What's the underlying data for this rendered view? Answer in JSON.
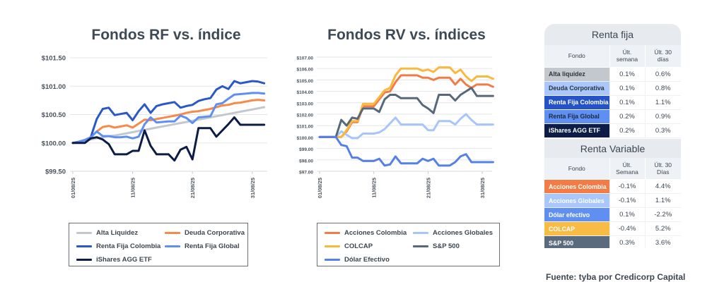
{
  "charts": [
    {
      "id": "rf",
      "type": "line",
      "title": "Fondos RF vs. índice",
      "xlabel": "",
      "ylabel": "",
      "ylim": [
        99.5,
        101.5
      ],
      "yticks": [
        99.5,
        100.0,
        100.5,
        101.0,
        101.5
      ],
      "ytick_labels": [
        "$99.50",
        "$100.00",
        "$100.50",
        "$101.00",
        "$101.50"
      ],
      "xtick_labels": [
        "01/08/25",
        "11/08/25",
        "21/08/25",
        "31/08/25"
      ],
      "xtick_index": [
        0,
        10,
        20,
        30
      ],
      "grid": true,
      "legend_placement": "bottom",
      "series": [
        {
          "name": "Alta Liquidez",
          "color": "#c3c8cf",
          "values": [
            100.0,
            100.02,
            100.04,
            100.06,
            100.08,
            100.1,
            100.12,
            100.13,
            100.15,
            100.17,
            100.19,
            100.21,
            100.23,
            100.25,
            100.27,
            100.29,
            100.31,
            100.33,
            100.35,
            100.37,
            100.39,
            100.41,
            100.43,
            100.45,
            100.47,
            100.49,
            100.51,
            100.53,
            100.55,
            100.57,
            100.59,
            100.61,
            100.63
          ]
        },
        {
          "name": "Deuda Corporativa",
          "color": "#f58a4b",
          "values": [
            100.0,
            100.02,
            100.05,
            100.1,
            100.2,
            100.28,
            100.3,
            100.27,
            100.29,
            100.31,
            100.27,
            100.34,
            100.41,
            100.4,
            100.42,
            100.44,
            100.46,
            100.48,
            100.5,
            100.53,
            100.55,
            100.56,
            100.58,
            100.6,
            100.63,
            100.66,
            100.67,
            100.7,
            100.71,
            100.73,
            100.75,
            100.76,
            100.75
          ]
        },
        {
          "name": "Renta Fija Colombia",
          "color": "#2b58c9",
          "values": [
            100.0,
            100.02,
            100.05,
            100.1,
            100.42,
            100.6,
            100.62,
            100.49,
            100.51,
            100.53,
            100.4,
            100.56,
            100.68,
            100.53,
            100.65,
            100.68,
            100.7,
            100.72,
            100.62,
            100.65,
            100.67,
            100.74,
            100.77,
            100.79,
            100.94,
            101.0,
            100.95,
            101.09,
            101.05,
            101.07,
            101.09,
            101.08,
            101.05
          ]
        },
        {
          "name": "Renta Fija Global",
          "color": "#5f8ff0",
          "values": [
            100.0,
            100.02,
            100.05,
            100.1,
            100.2,
            100.12,
            100.12,
            100.1,
            100.1,
            100.11,
            100.08,
            100.11,
            100.33,
            100.45,
            100.36,
            100.37,
            100.38,
            100.38,
            100.48,
            100.44,
            100.35,
            100.45,
            100.46,
            100.47,
            100.68,
            100.7,
            100.78,
            100.85,
            100.86,
            100.87,
            100.88,
            100.88,
            100.87
          ]
        },
        {
          "name": "iShares AGG ETF",
          "color": "#0c1c47",
          "values": [
            100.0,
            100.0,
            100.0,
            100.08,
            100.1,
            100.06,
            99.98,
            99.8,
            99.8,
            99.8,
            99.86,
            99.86,
            100.22,
            99.95,
            99.8,
            99.8,
            99.8,
            99.69,
            99.88,
            99.93,
            99.71,
            100.26,
            100.26,
            100.26,
            100.11,
            100.22,
            100.33,
            100.45,
            100.32,
            100.32,
            100.32,
            100.32,
            100.32
          ]
        }
      ]
    },
    {
      "id": "rv",
      "type": "line",
      "title": "Fondos RV vs. índices",
      "xlabel": "",
      "ylabel": "",
      "ylim": [
        97,
        107
      ],
      "yticks": [
        97,
        98,
        99,
        100,
        101,
        102,
        103,
        104,
        105,
        106,
        107
      ],
      "ytick_labels": [
        "$97.00",
        "$98.00",
        "$99.00",
        "$100.00",
        "$101.00",
        "$102.00",
        "$103.00",
        "$104.00",
        "$105.00",
        "$106.00",
        "$107.00"
      ],
      "xtick_labels": [
        "01/08/25",
        "11/08/25",
        "21/08/25",
        "31/08/25"
      ],
      "xtick_index": [
        0,
        10,
        20,
        30
      ],
      "grid": true,
      "legend_placement": "bottom",
      "series": [
        {
          "name": "Acciones Colombia",
          "color": "#f37b45",
          "values": [
            100.0,
            100.0,
            100.0,
            100.0,
            100.0,
            100.5,
            101.3,
            101.3,
            102.7,
            102.7,
            102.7,
            103.3,
            103.9,
            104.0,
            104.8,
            105.4,
            105.4,
            105.4,
            105.4,
            105.2,
            105.2,
            105.0,
            105.2,
            105.2,
            105.2,
            104.6,
            105.1,
            104.6,
            104.3,
            104.6,
            104.6,
            104.6,
            104.4
          ]
        },
        {
          "name": "Acciones Globales",
          "color": "#a7c5fb",
          "values": [
            100.0,
            100.0,
            100.0,
            100.0,
            100.5,
            100.2,
            99.9,
            99.9,
            100.3,
            100.3,
            100.3,
            100.4,
            100.7,
            101.2,
            101.7,
            101.1,
            101.1,
            101.1,
            101.1,
            101.1,
            100.6,
            100.6,
            101.4,
            101.4,
            101.4,
            101.1,
            101.6,
            102.0,
            101.5,
            101.1,
            101.1,
            101.1,
            101.1
          ]
        },
        {
          "name": "COLCAP",
          "color": "#f8b93d",
          "values": [
            100.0,
            100.0,
            100.0,
            100.0,
            100.0,
            100.6,
            101.4,
            101.4,
            102.9,
            102.9,
            102.9,
            103.5,
            104.1,
            104.3,
            105.4,
            106.0,
            106.0,
            106.0,
            106.0,
            105.8,
            105.9,
            105.7,
            106.1,
            106.1,
            106.1,
            105.6,
            105.9,
            105.3,
            104.9,
            105.3,
            105.3,
            105.3,
            105.1
          ]
        },
        {
          "name": "S&P 500",
          "color": "#57687a",
          "values": [
            100.0,
            100.0,
            100.0,
            100.0,
            101.5,
            101.0,
            101.7,
            101.6,
            102.5,
            102.5,
            102.5,
            102.2,
            103.3,
            103.7,
            103.7,
            103.4,
            103.4,
            103.4,
            103.4,
            102.8,
            102.5,
            102.1,
            103.7,
            103.7,
            103.7,
            103.2,
            103.7,
            104.0,
            104.3,
            103.6,
            103.6,
            103.6,
            103.6
          ]
        },
        {
          "name": "Dólar Efectivo",
          "color": "#5580e8",
          "values": [
            100.0,
            100.0,
            100.0,
            100.0,
            99.3,
            99.2,
            98.2,
            98.2,
            97.9,
            97.9,
            97.9,
            98.1,
            97.5,
            97.6,
            98.3,
            97.7,
            97.7,
            97.7,
            97.7,
            98.1,
            97.9,
            98.1,
            97.5,
            97.5,
            97.5,
            97.8,
            98.3,
            98.5,
            97.8,
            97.8,
            97.8,
            97.8,
            97.8
          ]
        }
      ]
    }
  ],
  "tables": {
    "renta_fija": {
      "title": "Renta fija",
      "headers": [
        "Fondo",
        "Últ. semana",
        "Últ. 30 días"
      ],
      "header_lines": [
        [
          "Fondo"
        ],
        [
          "Últ.",
          "semana"
        ],
        [
          "Últ. 30",
          "días"
        ]
      ],
      "rows": [
        {
          "fondo": "Alta liquidez",
          "semana": "0.1%",
          "dias30": "0.6%",
          "bg": "#c3c8cf",
          "fg": "#2c3540"
        },
        {
          "fondo": "Deuda Corporativa",
          "semana": "0.1%",
          "dias30": "0.8%",
          "bg": "#a9c7fb",
          "fg": "#2c3540"
        },
        {
          "fondo": "Renta Fija Colombia",
          "semana": "0.1%",
          "dias30": "1.1%",
          "bg": "#2452c8",
          "fg": "#ffffff"
        },
        {
          "fondo": "Renta Fija Global",
          "semana": "0.2%",
          "dias30": "0.9%",
          "bg": "#5f8ff0",
          "fg": "#1d2a44"
        },
        {
          "fondo": "iShares AGG ETF",
          "semana": "0.2%",
          "dias30": "0.3%",
          "bg": "#0c1c47",
          "fg": "#ffffff"
        }
      ]
    },
    "renta_variable": {
      "title": "Renta Variable",
      "headers": [
        "Fondo",
        "Últ. Semana",
        "Últ. 30 Días"
      ],
      "header_lines": [
        [
          "Fondo"
        ],
        [
          "Últ.",
          "Semana"
        ],
        [
          "Últ. 30",
          "Días"
        ]
      ],
      "rows": [
        {
          "fondo": "Acciones Colombia",
          "semana": "-0.1%",
          "dias30": "4.4%",
          "bg": "#f37b45",
          "fg": "#ffffff"
        },
        {
          "fondo": "Acciones Globales",
          "semana": "-0.1%",
          "dias30": "1.1%",
          "bg": "#a9c7fb",
          "fg": "#ffffff"
        },
        {
          "fondo": "Dólar efectivo",
          "semana": "0.1%",
          "dias30": "-2.2%",
          "bg": "#5f8ff0",
          "fg": "#ffffff"
        },
        {
          "fondo": "COLCAP",
          "semana": "-0.4%",
          "dias30": "5.2%",
          "bg": "#f8bc45",
          "fg": "#ffffff"
        },
        {
          "fondo": "S&P 500",
          "semana": "0.3%",
          "dias30": "3.6%",
          "bg": "#5a6b7d",
          "fg": "#ffffff"
        }
      ]
    }
  },
  "source": "Fuente: tyba por Credicorp Capital"
}
